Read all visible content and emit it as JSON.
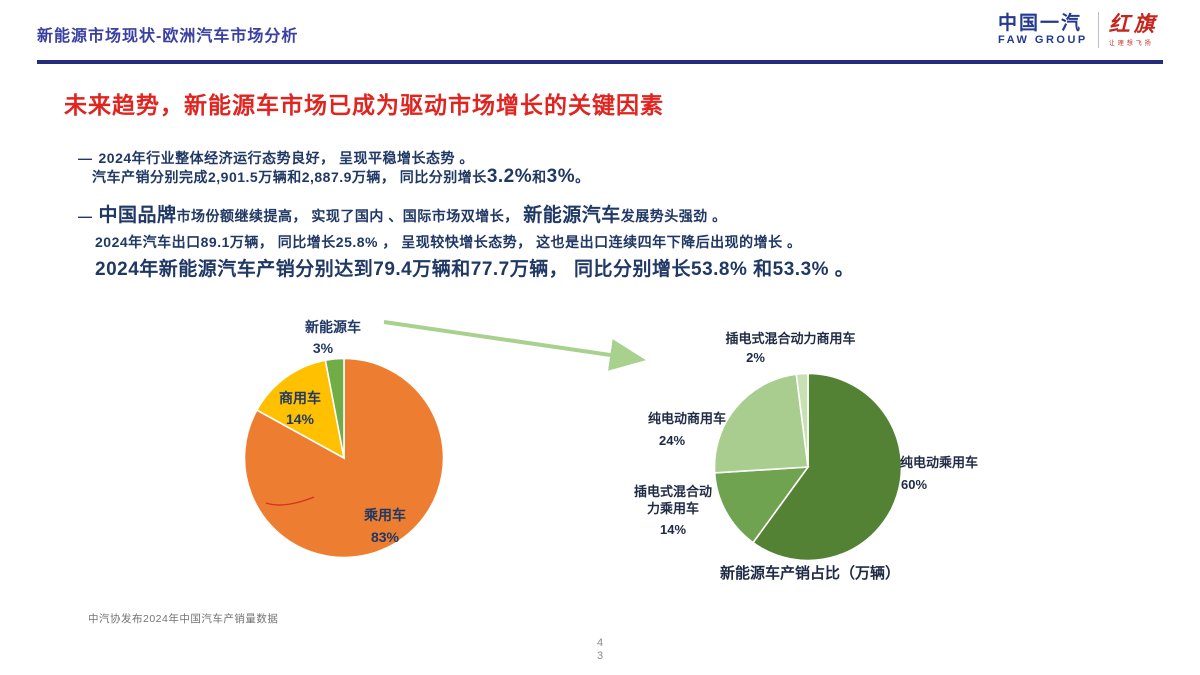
{
  "header": {
    "title": "新能源市场现状-欧洲汽车市场分析",
    "logo": {
      "cn": "中国一汽",
      "en": "FAW GROUP",
      "brand": "红旗",
      "slogan": "让理想飞扬"
    }
  },
  "slide": {
    "title": "未来趋势，新能源车市场已成为驱动市场增长的关键因素",
    "bullets": {
      "b1_dash": "—",
      "b1": "2024年行业整体经济运行态势良好， 呈现平稳增长态势 。",
      "b2_pre": "汽车产销分别完成2,901.5万辆和2,887.9万辆， 同比分别增长",
      "b2_big1": "3.2%",
      "b2_mid": "和",
      "b2_big2": "3%",
      "b2_end": "。",
      "b3_dash": "—",
      "b3_big1": "中国品牌",
      "b3_t1": "市场份额继续提高， 实现了国内 、国际市场双增长， ",
      "b3_big2": "新能源汽车",
      "b3_t2": "发展势头强劲 。",
      "b4": "2024年汽车出口89.1万辆， 同比增长25.8% ， 呈现较快增长态势， 这也是出口连续四年下降后出现的增长 。",
      "b5": "2024年新能源汽车产销分别达到79.4万辆和77.7万辆， 同比分别增长53.8% 和53.3% 。"
    },
    "footnote": "中汽协发布2024年中国汽车产销量数据",
    "page_number_top": "4",
    "page_number_bottom": "3"
  },
  "chart_data": [
    {
      "type": "pie",
      "name": "china-auto-market-mix",
      "title": "",
      "labels": [
        "乘用车",
        "商用车",
        "新能源车"
      ],
      "values": [
        83,
        14,
        3
      ],
      "value_labels": [
        "83%",
        "14%",
        "3%"
      ],
      "colors": [
        "#ED7D31",
        "#FFC000",
        "#70AD47"
      ],
      "start_angle_deg": 0,
      "direction": "clockwise",
      "legend_position": "none"
    },
    {
      "type": "pie",
      "name": "nev-production-sales-share",
      "title": "新能源车产销占比（万辆）",
      "labels": [
        "纯电动乘用车",
        "插电式混合动力乘用车",
        "纯电动商用车",
        "插电式混合动力商用车"
      ],
      "values": [
        60,
        14,
        24,
        2
      ],
      "value_labels": [
        "60%",
        "14%",
        "24%",
        "2%"
      ],
      "colors": [
        "#548235",
        "#6FA350",
        "#A9CD8E",
        "#C9DFB4"
      ],
      "start_angle_deg": 0,
      "direction": "clockwise",
      "legend_position": "none"
    }
  ],
  "colors": {
    "header_blue": "#3a41a0",
    "rule_navy": "#232d7a",
    "title_red": "#e02420",
    "body_navy": "#203864",
    "arrow_green": "#A9D18E",
    "footnote_gray": "#737373"
  }
}
